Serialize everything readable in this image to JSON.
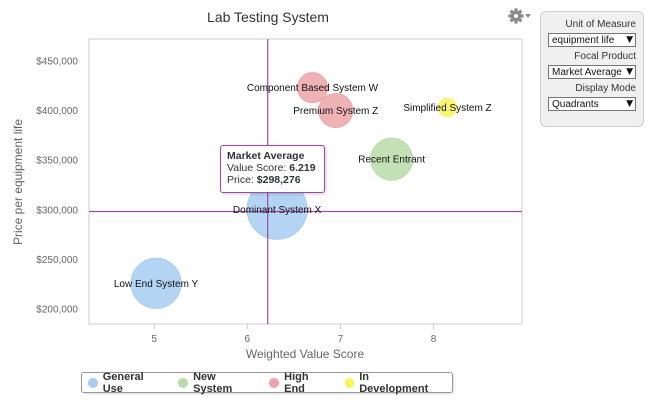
{
  "title": "Lab Testing System",
  "controls": {
    "unit_label": "Unit of Measure",
    "unit_value": "equipment life",
    "focal_label": "Focal Product",
    "focal_value": "Market Average",
    "mode_label": "Display Mode",
    "mode_value": "Quadrants"
  },
  "icons": {
    "settings": "gear-icon",
    "dropdown": "chevron-down-icon"
  },
  "tooltip": {
    "title": "Market Average",
    "score_label": "Value Score:",
    "score_value": "6.219",
    "price_label": "Price:",
    "price_value": "$298,276"
  },
  "colors": {
    "quadrant_line": "#9c4aa6",
    "General Use": "#a7cdf2",
    "New System": "#b8dca8",
    "High End": "#eca4a8",
    "In Development": "#f8f55a"
  },
  "chart_data": {
    "type": "scatter",
    "xlabel": "Weighted Value Score",
    "ylabel": "Price per equipment life",
    "xlim": [
      4.3,
      8.95
    ],
    "ylim": [
      185000,
      472000
    ],
    "x_ticks": [
      5,
      6,
      7,
      8
    ],
    "y_ticks": [
      200000,
      250000,
      300000,
      350000,
      400000,
      450000
    ],
    "y_tick_labels": [
      "$200,000",
      "$250,000",
      "$300,000",
      "$350,000",
      "$400,000",
      "$450,000"
    ],
    "grid": false,
    "legend_position": "bottom",
    "quadrant_lines": {
      "x": 6.219,
      "y": 298276
    },
    "series": [
      {
        "name": "General Use",
        "points": [
          {
            "label": "Dominant System X",
            "x": 6.32,
            "y": 300500,
            "size": 30
          },
          {
            "label": "Low End System Y",
            "x": 5.02,
            "y": 226000,
            "size": 25
          }
        ]
      },
      {
        "name": "New System",
        "points": [
          {
            "label": "Recent Entrant",
            "x": 7.55,
            "y": 351000,
            "size": 21
          }
        ]
      },
      {
        "name": "High End",
        "points": [
          {
            "label": "Component Based System W",
            "x": 6.7,
            "y": 423000,
            "size": 15
          },
          {
            "label": "Premium System Z",
            "x": 6.95,
            "y": 400000,
            "size": 17
          }
        ]
      },
      {
        "name": "In Development",
        "points": [
          {
            "label": "Simplified System Z",
            "x": 8.15,
            "y": 403000,
            "size": 9
          }
        ]
      }
    ]
  }
}
